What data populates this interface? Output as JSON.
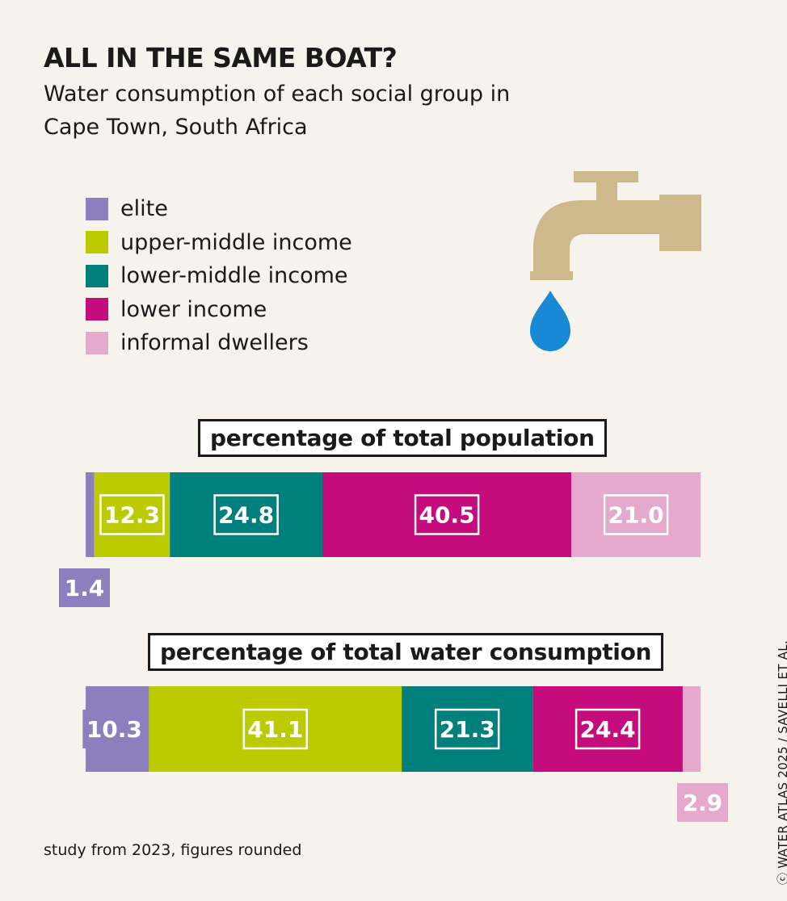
{
  "header": {
    "title": "ALL IN THE SAME BOAT?",
    "subtitle": "Water consumption of each social group in Cape Town, South Africa"
  },
  "legend": [
    {
      "label": "elite",
      "color": "#8b7fbd"
    },
    {
      "label": "upper-middle income",
      "color": "#bccb00"
    },
    {
      "label": "lower-middle income",
      "color": "#00807c"
    },
    {
      "label": "lower income",
      "color": "#c40c7c"
    },
    {
      "label": "informal dwellers",
      "color": "#e4a9cd"
    }
  ],
  "chart_data": [
    {
      "type": "bar",
      "orientation": "horizontal-stacked",
      "title": "percentage of total population",
      "categories": [
        "elite",
        "upper-middle income",
        "lower-middle income",
        "lower income",
        "informal dwellers"
      ],
      "values": [
        1.4,
        12.3,
        24.8,
        40.5,
        21.0
      ],
      "labels": [
        "1.4",
        "12.3",
        "24.8",
        "40.5",
        "21.0"
      ],
      "unit": "%"
    },
    {
      "type": "bar",
      "orientation": "horizontal-stacked",
      "title": "percentage of total water consumption",
      "categories": [
        "elite",
        "upper-middle income",
        "lower-middle income",
        "lower income",
        "informal dwellers"
      ],
      "values": [
        10.3,
        41.1,
        21.3,
        24.4,
        2.9
      ],
      "labels": [
        "10.3",
        "41.1",
        "21.3",
        "24.4",
        "2.9"
      ],
      "unit": "%"
    }
  ],
  "footer": {
    "note": "study from 2023, figures rounded",
    "credit": "ⓒ WATER ATLAS 2025 / SAVELLI ET AL."
  },
  "icons": {
    "tap": "water-tap-icon",
    "drop": "water-drop-icon"
  },
  "colors": {
    "tap": "#cdb98c",
    "drop": "#1889d4",
    "background": "#f6f3ec"
  }
}
